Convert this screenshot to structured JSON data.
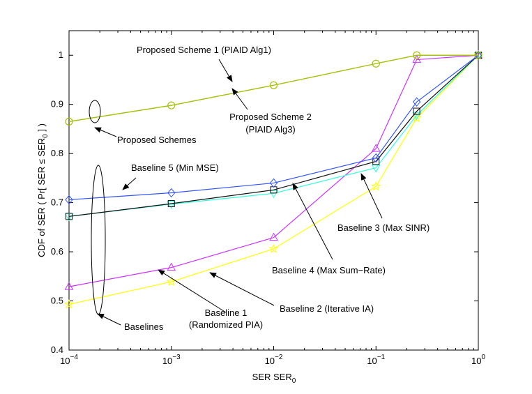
{
  "chart_data": {
    "type": "line",
    "xscale": "log",
    "xlim": [
      0.0001,
      1
    ],
    "ylim": [
      0.4,
      1.05
    ],
    "xlabel": "SER SER",
    "xlabel_sub": "0",
    "ylabel": "CDF of SER ( Pr[ SER ≤ SER",
    "ylabel_sub": "0",
    "ylabel_end": " ] )",
    "x_ticks": [
      {
        "value": 0.0001,
        "base": "10",
        "exp": "−4"
      },
      {
        "value": 0.001,
        "base": "10",
        "exp": "−3"
      },
      {
        "value": 0.01,
        "base": "10",
        "exp": "−2"
      },
      {
        "value": 0.1,
        "base": "10",
        "exp": "−1"
      },
      {
        "value": 1,
        "base": "10",
        "exp": "0"
      }
    ],
    "y_ticks": [
      "0.4",
      "0.5",
      "0.6",
      "0.7",
      "0.8",
      "0.9",
      "1"
    ],
    "series": [
      {
        "name": "Baseline 1 (Randomized PIA)",
        "color": "#ffff00",
        "marker": "star",
        "x": [
          0.0001,
          0.001,
          0.01,
          0.1,
          0.25,
          1
        ],
        "y": [
          0.493,
          0.539,
          0.606,
          0.733,
          0.872,
          1.0
        ]
      },
      {
        "name": "Baseline 2 (Iterative IA)",
        "color": "#cc33ff",
        "marker": "triangle-up",
        "x": [
          0.0001,
          0.001,
          0.01,
          0.1,
          0.25,
          1
        ],
        "y": [
          0.529,
          0.568,
          0.629,
          0.81,
          0.991,
          1.0
        ]
      },
      {
        "name": "Baseline 3 (Max SINR)",
        "color": "#33ffdd",
        "marker": "triangle-down",
        "x": [
          0.0001,
          0.001,
          0.01,
          0.1,
          0.25,
          1
        ],
        "y": [
          0.672,
          0.697,
          0.719,
          0.771,
          0.878,
          1.0
        ]
      },
      {
        "name": "Baseline 4 (Max Sum-Rate)",
        "color": "#111111",
        "marker": "square",
        "x": [
          0.0001,
          0.001,
          0.01,
          0.1,
          0.25,
          1
        ],
        "y": [
          0.672,
          0.698,
          0.726,
          0.784,
          0.886,
          1.0
        ]
      },
      {
        "name": "Baseline 5 (Min MSE)",
        "color": "#3355ff",
        "marker": "diamond",
        "x": [
          0.0001,
          0.001,
          0.01,
          0.1,
          0.25,
          1
        ],
        "y": [
          0.706,
          0.72,
          0.74,
          0.791,
          0.905,
          1.0
        ]
      },
      {
        "name": "Proposed Scheme 1 (PIAID Alg1)",
        "color": "#ff5500",
        "marker": "circle",
        "x": [
          0.0001,
          0.001,
          0.01,
          0.1,
          0.25,
          1
        ],
        "y": [
          0.865,
          0.898,
          0.939,
          0.983,
          1.0,
          1.0
        ]
      },
      {
        "name": "Proposed Scheme 2 (PIAID Alg3)",
        "color": "#99cc00",
        "marker": "circle",
        "x": [
          0.0001,
          0.001,
          0.01,
          0.1,
          0.25,
          1
        ],
        "y": [
          0.865,
          0.898,
          0.939,
          0.983,
          1.0,
          1.0
        ]
      }
    ],
    "annotations": {
      "ps1": "Proposed Scheme 1 (PIAID Alg1)",
      "ps2_line1": "Proposed Scheme 2",
      "ps2_line2": "(PIAID Alg3)",
      "schemes": "Proposed Schemes",
      "b5": "Baseline 5  (Min MSE)",
      "b3": "Baseline 3 (Max SINR)",
      "b4": "Baseline 4 (Max Sum−Rate)",
      "b2": "Baseline 2 (Iterative IA)",
      "b1_line1": "Baseline 1",
      "b1_line2": "(Randomized PIA)",
      "baselines": "Baselines"
    }
  }
}
